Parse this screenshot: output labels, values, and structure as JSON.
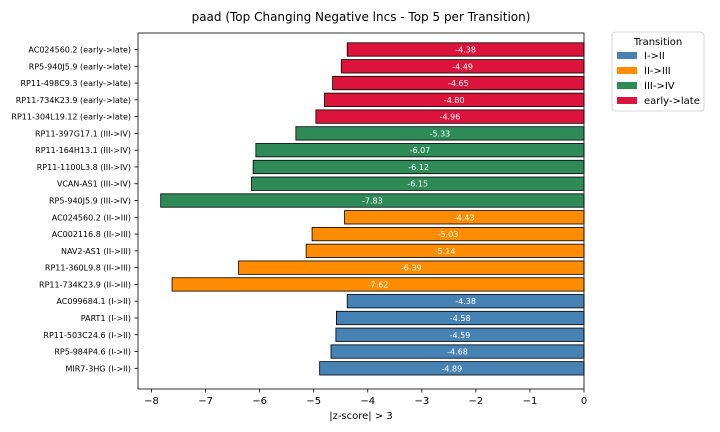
{
  "chart_data": {
    "type": "bar",
    "orientation": "horizontal",
    "title": "paad (Top Changing Negative lncs - Top 5 per Transition)",
    "xlabel": "|z-score| > 3",
    "ylabel": "",
    "xlim": [
      -8.25,
      0
    ],
    "xticks": [
      -8,
      -7,
      -6,
      -5,
      -4,
      -3,
      -2,
      -1,
      0
    ],
    "grid": false,
    "legend": {
      "title": "Transition",
      "placement": "outside-top-right",
      "entries": [
        {
          "label": "I->II",
          "color": "#4682b4"
        },
        {
          "label": "II->III",
          "color": "#ff8c00"
        },
        {
          "label": "III->IV",
          "color": "#2e8b57"
        },
        {
          "label": "early->late",
          "color": "#dc143c"
        }
      ]
    },
    "bars": [
      {
        "label": "AC024560.2 (early->late)",
        "value": -4.38,
        "value_label": "-4.38",
        "group": "early->late"
      },
      {
        "label": "RP5-940J5.9 (early->late)",
        "value": -4.49,
        "value_label": "-4.49",
        "group": "early->late"
      },
      {
        "label": "RP11-498C9.3 (early->late)",
        "value": -4.65,
        "value_label": "-4.65",
        "group": "early->late"
      },
      {
        "label": "RP11-734K23.9 (early->late)",
        "value": -4.8,
        "value_label": "-4.80",
        "group": "early->late"
      },
      {
        "label": "RP11-304L19.12 (early->late)",
        "value": -4.96,
        "value_label": "-4.96",
        "group": "early->late"
      },
      {
        "label": "RP11-397G17.1 (III->IV)",
        "value": -5.33,
        "value_label": "-5.33",
        "group": "III->IV"
      },
      {
        "label": "RP11-164H13.1 (III->IV)",
        "value": -6.07,
        "value_label": "-6.07",
        "group": "III->IV"
      },
      {
        "label": "RP11-1100L3.8 (III->IV)",
        "value": -6.12,
        "value_label": "-6.12",
        "group": "III->IV"
      },
      {
        "label": "VCAN-AS1 (III->IV)",
        "value": -6.15,
        "value_label": "-6.15",
        "group": "III->IV"
      },
      {
        "label": "RP5-940J5.9 (III->IV)",
        "value": -7.83,
        "value_label": "-7.83",
        "group": "III->IV"
      },
      {
        "label": "AC024560.2 (II->III)",
        "value": -4.43,
        "value_label": "-4.43",
        "group": "II->III"
      },
      {
        "label": "AC002116.8 (II->III)",
        "value": -5.03,
        "value_label": "-5.03",
        "group": "II->III"
      },
      {
        "label": "NAV2-AS1 (II->III)",
        "value": -5.14,
        "value_label": "-5.14",
        "group": "II->III"
      },
      {
        "label": "RP11-360L9.8 (II->III)",
        "value": -6.39,
        "value_label": "-6.39",
        "group": "II->III"
      },
      {
        "label": "RP11-734K23.9 (II->III)",
        "value": -7.62,
        "value_label": "-7.62",
        "group": "II->III"
      },
      {
        "label": "AC099684.1 (I->II)",
        "value": -4.38,
        "value_label": "-4.38",
        "group": "I->II"
      },
      {
        "label": "PART1 (I->II)",
        "value": -4.58,
        "value_label": "-4.58",
        "group": "I->II"
      },
      {
        "label": "RP11-503C24.6 (I->II)",
        "value": -4.59,
        "value_label": "-4.59",
        "group": "I->II"
      },
      {
        "label": "RP5-984P4.6 (I->II)",
        "value": -4.68,
        "value_label": "-4.68",
        "group": "I->II"
      },
      {
        "label": "MIR7-3HG (I->II)",
        "value": -4.89,
        "value_label": "-4.89",
        "group": "I->II"
      }
    ]
  }
}
